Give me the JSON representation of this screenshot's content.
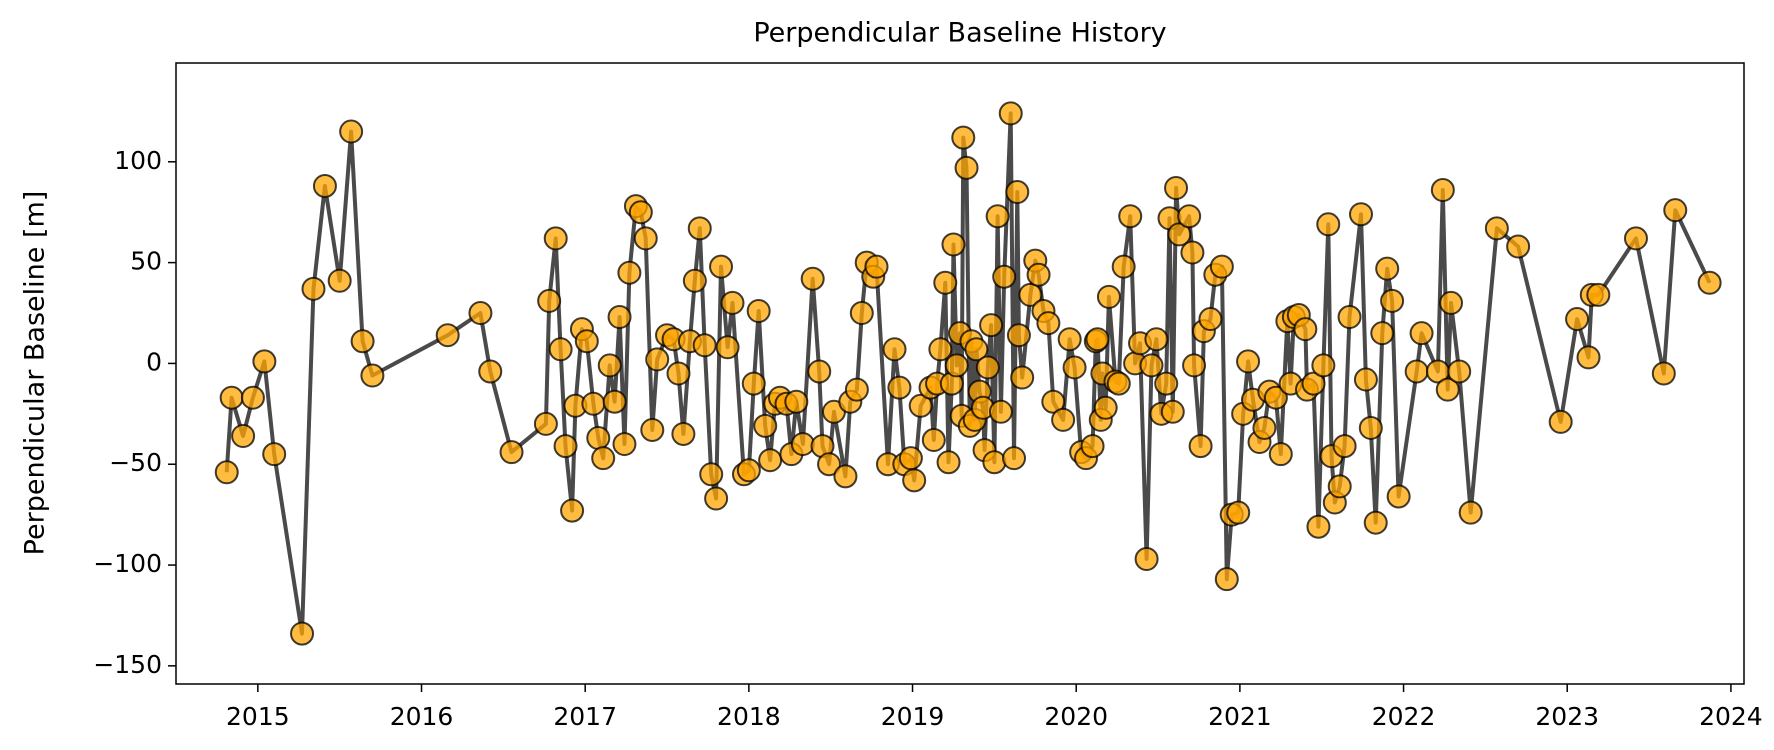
{
  "chart_data": {
    "type": "line",
    "title": "Perpendicular Baseline History",
    "ylabel": "Perpendicular Baseline [m]",
    "color": "#404040",
    "marker_color": "orange",
    "xlim": [
      2014.5,
      2024.08
    ],
    "xticks": [
      2015,
      2016,
      2017,
      2018,
      2019,
      2020,
      2021,
      2022,
      2023,
      2024
    ],
    "ylim": [
      -159,
      149
    ],
    "yticks": [
      {
        "value": -150,
        "label": "−150"
      },
      {
        "value": -100,
        "label": "−100"
      },
      {
        "value": -50,
        "label": "−50"
      },
      0,
      50,
      100
    ],
    "x": [
      2014.81,
      2014.84,
      2014.91,
      2014.97,
      2015.04,
      2015.1,
      2015.27,
      2015.34,
      2015.41,
      2015.5,
      2015.57,
      2015.64,
      2015.7,
      2016.16,
      2016.36,
      2016.42,
      2016.55,
      2016.76,
      2016.78,
      2016.82,
      2016.85,
      2016.88,
      2016.92,
      2016.94,
      2016.98,
      2017.01,
      2017.05,
      2017.08,
      2017.11,
      2017.15,
      2017.18,
      2017.21,
      2017.24,
      2017.27,
      2017.31,
      2017.34,
      2017.37,
      2017.41,
      2017.44,
      2017.5,
      2017.54,
      2017.57,
      2017.6,
      2017.64,
      2017.67,
      2017.7,
      2017.73,
      2017.77,
      2017.8,
      2017.83,
      2017.87,
      2017.9,
      2017.97,
      2018.0,
      2018.03,
      2018.06,
      2018.1,
      2018.13,
      2018.16,
      2018.19,
      2018.23,
      2018.26,
      2018.29,
      2018.33,
      2018.39,
      2018.43,
      2018.45,
      2018.49,
      2018.52,
      2018.59,
      2018.62,
      2018.66,
      2018.69,
      2018.72,
      2018.76,
      2018.78,
      2018.85,
      2018.89,
      2018.92,
      2018.95,
      2018.99,
      2019.01,
      2019.05,
      2019.11,
      2019.13,
      2019.15,
      2019.17,
      2019.2,
      2019.22,
      2019.24,
      2019.25,
      2019.27,
      2019.29,
      2019.3,
      2019.31,
      2019.33,
      2019.35,
      2019.36,
      2019.38,
      2019.39,
      2019.41,
      2019.43,
      2019.44,
      2019.46,
      2019.48,
      2019.5,
      2019.52,
      2019.54,
      2019.56,
      2019.6,
      2019.62,
      2019.64,
      2019.65,
      2019.67,
      2019.72,
      2019.75,
      2019.77,
      2019.8,
      2019.83,
      2019.86,
      2019.92,
      2019.96,
      2019.99,
      2020.03,
      2020.06,
      2020.1,
      2020.12,
      2020.13,
      2020.15,
      2020.16,
      2020.18,
      2020.2,
      2020.24,
      2020.26,
      2020.29,
      2020.33,
      2020.36,
      2020.39,
      2020.43,
      2020.46,
      2020.49,
      2020.52,
      2020.55,
      2020.57,
      2020.59,
      2020.61,
      2020.63,
      2020.69,
      2020.71,
      2020.72,
      2020.76,
      2020.78,
      2020.82,
      2020.85,
      2020.89,
      2020.92,
      2020.95,
      2020.99,
      2021.02,
      2021.05,
      2021.08,
      2021.12,
      2021.15,
      2021.18,
      2021.22,
      2021.25,
      2021.29,
      2021.31,
      2021.33,
      2021.36,
      2021.4,
      2021.41,
      2021.45,
      2021.48,
      2021.51,
      2021.54,
      2021.56,
      2021.58,
      2021.61,
      2021.64,
      2021.67,
      2021.74,
      2021.77,
      2021.8,
      2021.83,
      2021.87,
      2021.9,
      2021.93,
      2021.97,
      2022.08,
      2022.11,
      2022.21,
      2022.24,
      2022.27,
      2022.29,
      2022.34,
      2022.41,
      2022.57,
      2022.7,
      2022.96,
      2023.06,
      2023.13,
      2023.15,
      2023.19,
      2023.42,
      2023.59,
      2023.66,
      2023.87
    ],
    "values": [
      -54,
      -17,
      -36,
      -17,
      1,
      -45,
      -134,
      37,
      88,
      41,
      115,
      11,
      -6,
      14,
      25,
      -4,
      -44,
      -30,
      31,
      62,
      7,
      -41,
      -73,
      -21,
      17,
      11,
      -20,
      -37,
      -47,
      -1,
      -19,
      23,
      -40,
      45,
      78,
      75,
      62,
      -33,
      2,
      14,
      12,
      -5,
      -35,
      11,
      41,
      67,
      9,
      -55,
      -67,
      48,
      8,
      30,
      -55,
      -53,
      -10,
      26,
      -31,
      -48,
      -20,
      -17,
      -20,
      -45,
      -19,
      -40,
      42,
      -4,
      -41,
      -50,
      -24,
      -56,
      -19,
      -13,
      25,
      50,
      43,
      48,
      -50,
      7,
      -12,
      -50,
      -47,
      -58,
      -21,
      -12,
      -38,
      -10,
      7,
      40,
      -49,
      -10,
      59,
      -1,
      15,
      -26,
      112,
      97,
      -31,
      11,
      -28,
      7,
      -14,
      -22,
      -43,
      -2,
      19,
      -49,
      73,
      -24,
      43,
      124,
      -47,
      85,
      14,
      -7,
      34,
      51,
      44,
      26,
      20,
      -19,
      -28,
      12,
      -2,
      -44,
      -47,
      -41,
      11,
      12,
      -28,
      -5,
      -22,
      33,
      -9,
      -10,
      48,
      73,
      0,
      10,
      -97,
      -1,
      12,
      -25,
      -10,
      72,
      -24,
      87,
      64,
      73,
      55,
      -1,
      -41,
      16,
      22,
      44,
      48,
      -107,
      -75,
      -74,
      -25,
      1,
      -18,
      -39,
      -32,
      -14,
      -17,
      -45,
      21,
      -10,
      23,
      24,
      17,
      -13,
      -10,
      -81,
      -1,
      69,
      -46,
      -69,
      -61,
      -41,
      23,
      74,
      -8,
      -32,
      -79,
      15,
      47,
      31,
      -66,
      -4,
      15,
      -4,
      86,
      -13,
      30,
      -4,
      -74,
      67,
      58,
      -29,
      22,
      3,
      34,
      34,
      62,
      -5,
      76,
      40
    ]
  }
}
